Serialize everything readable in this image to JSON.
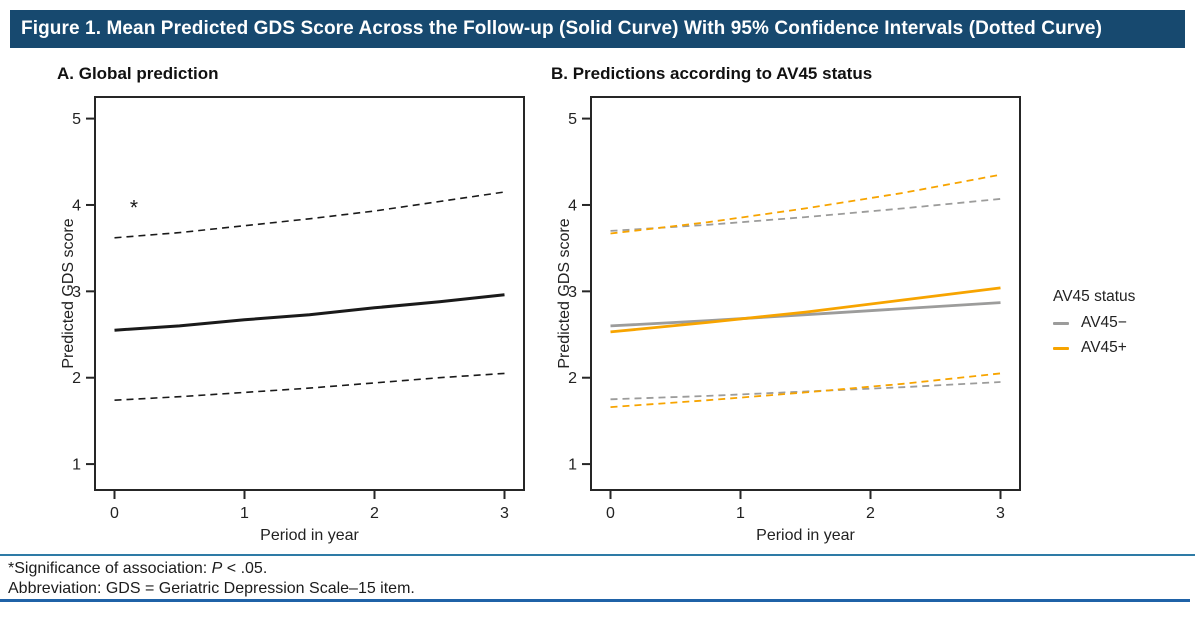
{
  "header": {
    "title": "Figure 1. Mean Predicted GDS Score Across the Follow-up (Solid Curve) With 95% Confidence Intervals (Dotted Curve)",
    "background_color": "#17496f"
  },
  "legend": {
    "title": "AV45 status",
    "position": "right-of-panel-b",
    "items": [
      {
        "label": "AV45−",
        "color": "#9c9c9b",
        "style": "solid"
      },
      {
        "label": "AV45+",
        "color": "#f7a400",
        "style": "solid"
      }
    ]
  },
  "footnotes": {
    "significance": {
      "prefix": "*Significance of association: ",
      "p": "P",
      "rest": " < .05."
    },
    "abbreviation": "Abbreviation: GDS = Geriatric Depression Scale–15 item."
  },
  "colors": {
    "black_line": "#1a1a1a",
    "gray_line": "#9c9c9b",
    "orange_line": "#f7a400",
    "axis": "#262626",
    "rule_top": "#2e7ba6",
    "rule_bottom": "#1f62a7"
  },
  "chart_data": [
    {
      "type": "line",
      "panel_label": "A",
      "title": "A. Global prediction",
      "xlabel": "Period in year",
      "ylabel": "Predicted GDS score",
      "xlim": [
        -0.15,
        3.15
      ],
      "ylim": [
        0.7,
        5.25
      ],
      "xticks": [
        0,
        1,
        2,
        3
      ],
      "yticks": [
        1,
        2,
        3,
        4,
        5
      ],
      "grid": false,
      "legend_position": "none",
      "annotations": [
        {
          "text": "*",
          "x": 0.15,
          "y": 4.03,
          "font_size": 21
        }
      ],
      "series": [
        {
          "name": "mean-predicted-gds",
          "style": "solid",
          "color": "#1a1a1a",
          "width": 3,
          "x": [
            0,
            0.5,
            1,
            1.5,
            2,
            2.5,
            3
          ],
          "y": [
            2.55,
            2.6,
            2.67,
            2.73,
            2.81,
            2.88,
            2.96
          ]
        },
        {
          "name": "upper-95ci",
          "style": "dashed",
          "color": "#1a1a1a",
          "width": 1.6,
          "x": [
            0,
            0.5,
            1,
            1.5,
            2,
            2.5,
            3
          ],
          "y": [
            3.62,
            3.68,
            3.76,
            3.84,
            3.93,
            4.04,
            4.15
          ]
        },
        {
          "name": "lower-95ci",
          "style": "dashed",
          "color": "#1a1a1a",
          "width": 1.6,
          "x": [
            0,
            0.5,
            1,
            1.5,
            2,
            2.5,
            3
          ],
          "y": [
            1.74,
            1.78,
            1.83,
            1.88,
            1.94,
            2.0,
            2.05
          ]
        }
      ]
    },
    {
      "type": "line",
      "panel_label": "B",
      "title": "B. Predictions according to AV45 status",
      "xlabel": "Period in year",
      "ylabel": "Predicted GDS score",
      "xlim": [
        -0.15,
        3.15
      ],
      "ylim": [
        0.7,
        5.25
      ],
      "xticks": [
        0,
        1,
        2,
        3
      ],
      "yticks": [
        1,
        2,
        3,
        4,
        5
      ],
      "grid": false,
      "legend_position": "right",
      "annotations": [],
      "series": [
        {
          "name": "av45-neg-mean",
          "style": "solid",
          "color": "#9c9c9b",
          "width": 2.8,
          "x": [
            0,
            0.75,
            1.5,
            2.25,
            3
          ],
          "y": [
            2.6,
            2.66,
            2.73,
            2.8,
            2.87
          ]
        },
        {
          "name": "av45-pos-mean",
          "style": "solid",
          "color": "#f7a400",
          "width": 2.8,
          "x": [
            0,
            0.75,
            1.5,
            2.25,
            3
          ],
          "y": [
            2.53,
            2.64,
            2.76,
            2.9,
            3.04
          ]
        },
        {
          "name": "av45-neg-upper-95ci",
          "style": "dashed",
          "color": "#9c9c9b",
          "width": 1.8,
          "x": [
            0,
            0.75,
            1.5,
            2.25,
            3
          ],
          "y": [
            3.7,
            3.77,
            3.86,
            3.96,
            4.07
          ]
        },
        {
          "name": "av45-pos-upper-95ci",
          "style": "dashed",
          "color": "#f7a400",
          "width": 1.8,
          "x": [
            0,
            0.75,
            1.5,
            2.25,
            3
          ],
          "y": [
            3.67,
            3.8,
            3.96,
            4.14,
            4.35
          ]
        },
        {
          "name": "av45-neg-lower-95ci",
          "style": "dashed",
          "color": "#9c9c9b",
          "width": 1.8,
          "x": [
            0,
            0.75,
            1.5,
            2.25,
            3
          ],
          "y": [
            1.75,
            1.79,
            1.84,
            1.89,
            1.95
          ]
        },
        {
          "name": "av45-pos-lower-95ci",
          "style": "dashed",
          "color": "#f7a400",
          "width": 1.8,
          "x": [
            0,
            0.75,
            1.5,
            2.25,
            3
          ],
          "y": [
            1.66,
            1.74,
            1.83,
            1.93,
            2.05
          ]
        }
      ]
    }
  ]
}
